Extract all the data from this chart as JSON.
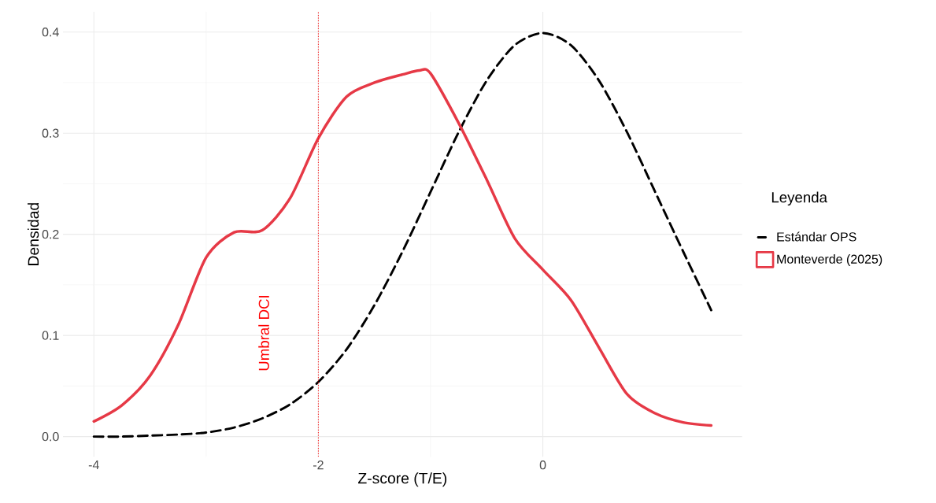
{
  "chart_data": {
    "type": "line",
    "xlabel": "Z-score (T/E)",
    "ylabel": "Densidad",
    "legend_title": "Leyenda",
    "xlim": [
      -4.275,
      1.775
    ],
    "ylim": [
      -0.02,
      0.42
    ],
    "xticks": [
      -4,
      -2,
      0
    ],
    "yticks": [
      {
        "value": 0,
        "label": "0.0"
      },
      0.1,
      0.2,
      0.3,
      0.4
    ],
    "grid": true,
    "legend": "right",
    "series": [
      {
        "name": "Estándar OPS",
        "color": "#000000",
        "line_style": "dashed",
        "x": [
          -4,
          -3.75,
          -3.5,
          -3.25,
          -3,
          -2.75,
          -2.5,
          -2.25,
          -2,
          -1.75,
          -1.5,
          -1.25,
          -1,
          -0.75,
          -0.5,
          -0.25,
          0,
          0.25,
          0.5,
          0.75,
          1,
          1.25,
          1.5
        ],
        "values": [
          0.0,
          0.0,
          0.001,
          0.002,
          0.004,
          0.009,
          0.018,
          0.032,
          0.054,
          0.086,
          0.13,
          0.183,
          0.242,
          0.301,
          0.352,
          0.387,
          0.399,
          0.387,
          0.352,
          0.301,
          0.242,
          0.183,
          0.125
        ]
      },
      {
        "name": "Monteverde (2025)",
        "color": "#e63946",
        "line_style": "solid",
        "x": [
          -4,
          -3.75,
          -3.5,
          -3.25,
          -3,
          -2.75,
          -2.5,
          -2.25,
          -2,
          -1.75,
          -1.5,
          -1.25,
          -1.1,
          -1,
          -0.75,
          -0.5,
          -0.25,
          0,
          0.25,
          0.5,
          0.75,
          1,
          1.25,
          1.5
        ],
        "values": [
          0.015,
          0.031,
          0.06,
          0.11,
          0.177,
          0.202,
          0.204,
          0.236,
          0.295,
          0.336,
          0.35,
          0.358,
          0.362,
          0.359,
          0.31,
          0.254,
          0.196,
          0.165,
          0.135,
          0.088,
          0.042,
          0.023,
          0.014,
          0.011
        ]
      }
    ],
    "ref_lines": [
      {
        "axis": "x",
        "value": -2,
        "label": "Umbral DCI",
        "color": "#ff0000",
        "line_style": "dotted"
      }
    ]
  }
}
